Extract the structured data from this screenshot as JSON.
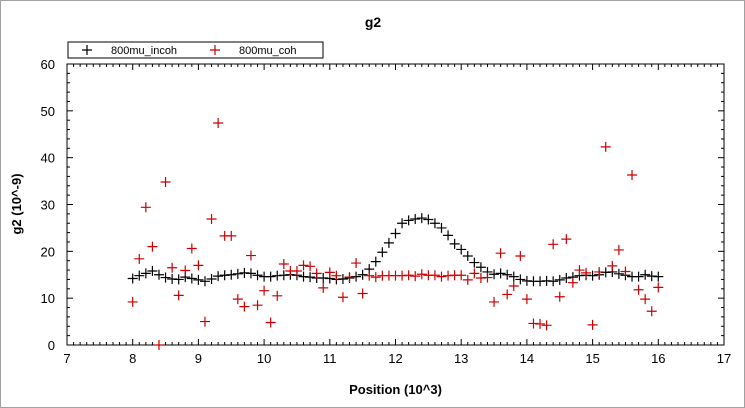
{
  "chart_data": {
    "type": "scatter",
    "title": "g2",
    "xlabel": "Position (10^3)",
    "ylabel": "g2 (10^-9)",
    "xlim": [
      7,
      17
    ],
    "ylim": [
      0,
      60
    ],
    "xticks": [
      7,
      8,
      9,
      10,
      11,
      12,
      13,
      14,
      15,
      16,
      17
    ],
    "yticks": [
      0,
      10,
      20,
      30,
      40,
      50,
      60
    ],
    "grid": false,
    "legend_position": "top-left",
    "series": [
      {
        "name": "800mu_incoh",
        "color": "#000000",
        "marker": "plus",
        "x": [
          8.0,
          8.1,
          8.2,
          8.3,
          8.4,
          8.5,
          8.6,
          8.7,
          8.8,
          8.9,
          9.0,
          9.1,
          9.2,
          9.3,
          9.4,
          9.5,
          9.6,
          9.7,
          9.8,
          9.9,
          10.0,
          10.1,
          10.2,
          10.3,
          10.4,
          10.5,
          10.6,
          10.7,
          10.8,
          10.9,
          11.0,
          11.1,
          11.2,
          11.3,
          11.4,
          11.5,
          11.6,
          11.7,
          11.8,
          11.9,
          12.0,
          12.1,
          12.2,
          12.3,
          12.4,
          12.5,
          12.6,
          12.7,
          12.8,
          12.9,
          13.0,
          13.1,
          13.2,
          13.3,
          13.4,
          13.5,
          13.6,
          13.7,
          13.8,
          13.9,
          14.0,
          14.1,
          14.2,
          14.3,
          14.4,
          14.5,
          14.6,
          14.7,
          14.8,
          14.9,
          15.0,
          15.1,
          15.2,
          15.3,
          15.4,
          15.5,
          15.6,
          15.7,
          15.8,
          15.9,
          16.0
        ],
        "y": [
          14.2,
          14.8,
          15.3,
          15.8,
          15.0,
          14.4,
          14.1,
          14.0,
          14.5,
          14.2,
          13.9,
          13.6,
          14.1,
          14.7,
          14.9,
          15.0,
          15.2,
          15.4,
          15.3,
          14.9,
          14.6,
          14.6,
          14.8,
          14.9,
          15.0,
          14.9,
          14.6,
          14.5,
          14.3,
          14.3,
          14.2,
          14.0,
          14.1,
          14.3,
          14.6,
          15.0,
          16.2,
          17.8,
          19.8,
          21.8,
          23.8,
          26.0,
          26.6,
          26.9,
          27.1,
          26.8,
          26.0,
          25.0,
          23.4,
          21.6,
          20.4,
          19.0,
          17.6,
          16.6,
          15.6,
          15.1,
          15.3,
          15.0,
          14.6,
          14.0,
          13.7,
          13.6,
          13.6,
          13.7,
          13.6,
          13.9,
          14.3,
          14.5,
          14.8,
          14.9,
          14.8,
          15.0,
          15.5,
          15.6,
          15.2,
          14.9,
          14.6,
          14.6,
          15.0,
          14.7,
          14.6
        ]
      },
      {
        "name": "800mu_coh",
        "color": "#cc0000",
        "marker": "plus",
        "x": [
          8.0,
          8.1,
          8.2,
          8.3,
          8.4,
          8.5,
          8.6,
          8.7,
          8.8,
          8.9,
          9.0,
          9.1,
          9.2,
          9.3,
          9.4,
          9.5,
          9.6,
          9.7,
          9.8,
          9.9,
          10.0,
          10.1,
          10.2,
          10.3,
          10.4,
          10.5,
          10.6,
          10.7,
          10.8,
          10.9,
          11.0,
          11.1,
          11.2,
          11.3,
          11.4,
          11.5,
          11.6,
          11.7,
          11.8,
          11.9,
          12.0,
          12.1,
          12.2,
          12.3,
          12.4,
          12.5,
          12.6,
          12.7,
          12.8,
          12.9,
          13.0,
          13.1,
          13.2,
          13.3,
          13.4,
          13.5,
          13.6,
          13.7,
          13.8,
          13.9,
          14.0,
          14.1,
          14.2,
          14.3,
          14.4,
          14.5,
          14.6,
          14.7,
          14.8,
          14.9,
          15.0,
          15.1,
          15.2,
          15.3,
          15.4,
          15.5,
          15.6,
          15.7,
          15.8,
          15.9,
          16.0
        ],
        "y": [
          9.2,
          18.4,
          29.4,
          21.0,
          0.0,
          34.8,
          16.5,
          10.6,
          15.9,
          20.6,
          17.0,
          5.0,
          26.9,
          47.4,
          23.3,
          23.3,
          9.8,
          8.2,
          19.1,
          8.5,
          11.6,
          4.8,
          10.5,
          17.3,
          15.8,
          15.8,
          17.0,
          16.8,
          15.3,
          12.2,
          15.5,
          14.8,
          10.2,
          14.5,
          17.5,
          11.0,
          14.8,
          14.5,
          14.8,
          14.8,
          14.8,
          14.8,
          14.9,
          14.7,
          15.1,
          14.9,
          14.9,
          14.6,
          14.8,
          14.9,
          14.9,
          13.9,
          15.3,
          14.3,
          14.4,
          9.2,
          19.6,
          10.8,
          12.6,
          19.0,
          9.8,
          4.6,
          4.5,
          4.2,
          21.5,
          10.3,
          22.6,
          13.3,
          16.0,
          15.4,
          4.3,
          15.6,
          42.3,
          16.9,
          20.3,
          15.7,
          36.3,
          11.8,
          9.8,
          7.2,
          12.3
        ]
      }
    ]
  }
}
